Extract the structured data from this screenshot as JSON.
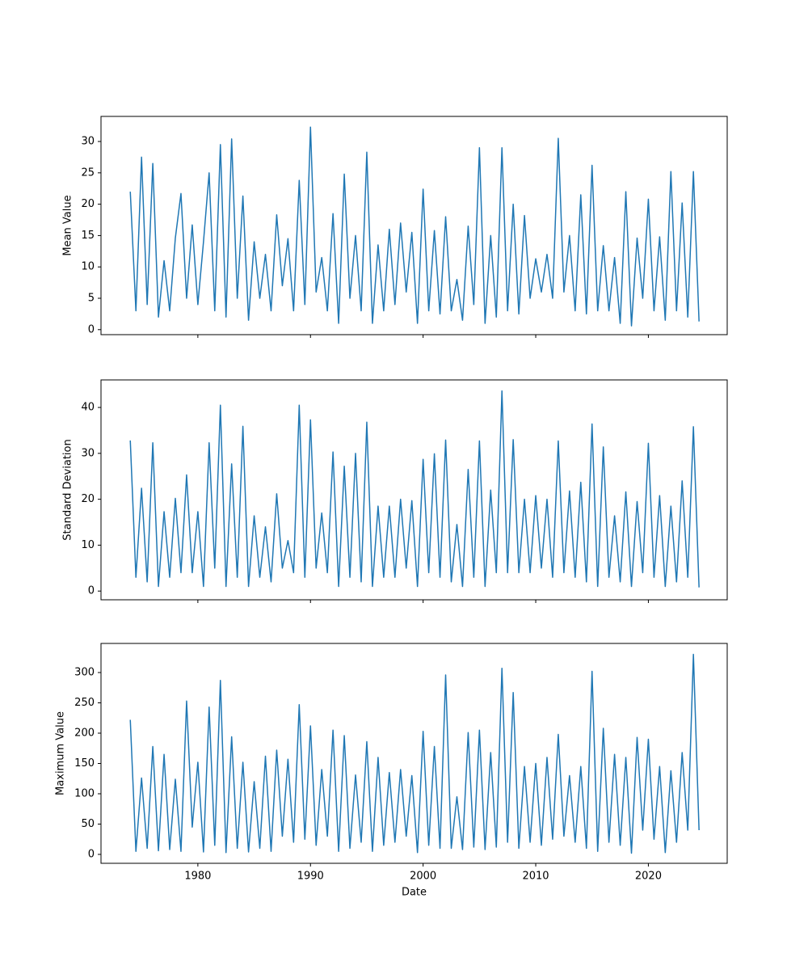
{
  "chart_data": [
    {
      "type": "line",
      "ylabel": "Mean Value",
      "color": "#1f77b4",
      "x": [
        1974,
        1974.5,
        1975,
        1975.5,
        1976,
        1976.5,
        1977,
        1977.5,
        1978,
        1978.5,
        1979,
        1979.5,
        1980,
        1980.5,
        1981,
        1981.5,
        1982,
        1982.5,
        1983,
        1983.5,
        1984,
        1984.5,
        1985,
        1985.5,
        1986,
        1986.5,
        1987,
        1987.5,
        1988,
        1988.5,
        1989,
        1989.5,
        1990,
        1990.5,
        1991,
        1991.5,
        1992,
        1992.5,
        1993,
        1993.5,
        1994,
        1994.5,
        1995,
        1995.5,
        1996,
        1996.5,
        1997,
        1997.5,
        1998,
        1998.5,
        1999,
        1999.5,
        2000,
        2000.5,
        2001,
        2001.5,
        2002,
        2002.5,
        2003,
        2003.5,
        2004,
        2004.5,
        2005,
        2005.5,
        2006,
        2006.5,
        2007,
        2007.5,
        2008,
        2008.5,
        2009,
        2009.5,
        2010,
        2010.5,
        2011,
        2011.5,
        2012,
        2012.5,
        2013,
        2013.5,
        2014,
        2014.5,
        2015,
        2015.5,
        2016,
        2016.5,
        2017,
        2017.5,
        2018,
        2018.5,
        2019,
        2019.5,
        2020,
        2020.5,
        2021,
        2021.5,
        2022,
        2022.5,
        2023,
        2023.5,
        2024,
        2024.5
      ],
      "values": [
        22,
        3,
        27.5,
        4,
        26.5,
        2,
        11,
        3,
        14.6,
        21.7,
        5,
        16.7,
        4,
        14,
        25,
        3,
        29.5,
        2,
        30.4,
        5,
        21.3,
        1.5,
        14,
        5,
        12,
        3,
        18.3,
        7,
        14.5,
        3,
        23.8,
        4,
        32.3,
        6,
        11.5,
        3,
        18.5,
        1,
        24.8,
        5,
        15,
        3,
        28.3,
        1,
        13.5,
        3,
        16,
        4,
        17,
        6,
        15.5,
        1,
        22.4,
        3,
        15.8,
        2.5,
        18,
        3,
        8,
        1.5,
        16.5,
        4,
        29,
        1,
        15,
        2,
        29,
        3,
        20,
        2.5,
        18.2,
        5,
        11.3,
        6,
        12,
        5,
        30.5,
        6,
        15,
        3,
        21.5,
        2.5,
        26.2,
        3,
        13.4,
        3,
        11.5,
        1,
        22,
        0.6,
        14.6,
        5,
        20.8,
        3,
        14.8,
        1.5,
        25.2,
        3,
        20.2,
        2,
        25.2,
        1.3
      ],
      "xlim": [
        1971.4,
        2027.0
      ],
      "xticks": [
        1980,
        1990,
        2000,
        2010,
        2020
      ],
      "ylim": [
        -0.8,
        34.0
      ],
      "yticks": [
        0,
        5,
        10,
        15,
        20,
        25,
        30
      ]
    },
    {
      "type": "line",
      "ylabel": "Standard Deviation",
      "color": "#1f77b4",
      "x": [
        1974,
        1974.5,
        1975,
        1975.5,
        1976,
        1976.5,
        1977,
        1977.5,
        1978,
        1978.5,
        1979,
        1979.5,
        1980,
        1980.5,
        1981,
        1981.5,
        1982,
        1982.5,
        1983,
        1983.5,
        1984,
        1984.5,
        1985,
        1985.5,
        1986,
        1986.5,
        1987,
        1987.5,
        1988,
        1988.5,
        1989,
        1989.5,
        1990,
        1990.5,
        1991,
        1991.5,
        1992,
        1992.5,
        1993,
        1993.5,
        1994,
        1994.5,
        1995,
        1995.5,
        1996,
        1996.5,
        1997,
        1997.5,
        1998,
        1998.5,
        1999,
        1999.5,
        2000,
        2000.5,
        2001,
        2001.5,
        2002,
        2002.5,
        2003,
        2003.5,
        2004,
        2004.5,
        2005,
        2005.5,
        2006,
        2006.5,
        2007,
        2007.5,
        2008,
        2008.5,
        2009,
        2009.5,
        2010,
        2010.5,
        2011,
        2011.5,
        2012,
        2012.5,
        2013,
        2013.5,
        2014,
        2014.5,
        2015,
        2015.5,
        2016,
        2016.5,
        2017,
        2017.5,
        2018,
        2018.5,
        2019,
        2019.5,
        2020,
        2020.5,
        2021,
        2021.5,
        2022,
        2022.5,
        2023,
        2023.5,
        2024,
        2024.5
      ],
      "values": [
        32.8,
        3,
        22.4,
        2,
        32.3,
        1,
        17.3,
        3,
        20.2,
        4,
        25.3,
        4,
        17.3,
        1,
        32.3,
        5,
        40.5,
        1,
        27.7,
        3,
        35.9,
        1,
        16.4,
        3,
        14,
        2,
        21.2,
        5,
        11,
        4,
        40.5,
        3,
        37.3,
        5,
        17,
        4,
        30.3,
        1,
        27.2,
        3,
        30,
        2,
        36.8,
        1,
        18.5,
        3,
        18.5,
        3,
        20,
        5,
        19.7,
        1,
        28.7,
        4,
        29.9,
        3,
        32.9,
        2,
        14.5,
        1,
        26.5,
        3,
        32.7,
        1,
        22,
        4,
        43.6,
        4,
        33,
        4,
        20,
        4,
        20.8,
        5,
        20,
        3,
        32.7,
        4,
        21.8,
        3,
        23.7,
        2,
        36.4,
        1,
        31.4,
        3,
        16.4,
        2,
        21.6,
        1,
        19.5,
        4,
        32.2,
        3,
        20.8,
        1,
        18.5,
        2,
        24,
        3,
        35.8,
        0.8
      ],
      "xlim": [
        1971.4,
        2027.0
      ],
      "xticks": [
        1980,
        1990,
        2000,
        2010,
        2020
      ],
      "ylim": [
        -1.9,
        46.0
      ],
      "yticks": [
        0,
        10,
        20,
        30,
        40
      ]
    },
    {
      "type": "line",
      "ylabel": "Maximum Value",
      "xlabel": "Date",
      "color": "#1f77b4",
      "x": [
        1974,
        1974.5,
        1975,
        1975.5,
        1976,
        1976.5,
        1977,
        1977.5,
        1978,
        1978.5,
        1979,
        1979.5,
        1980,
        1980.5,
        1981,
        1981.5,
        1982,
        1982.5,
        1983,
        1983.5,
        1984,
        1984.5,
        1985,
        1985.5,
        1986,
        1986.5,
        1987,
        1987.5,
        1988,
        1988.5,
        1989,
        1989.5,
        1990,
        1990.5,
        1991,
        1991.5,
        1992,
        1992.5,
        1993,
        1993.5,
        1994,
        1994.5,
        1995,
        1995.5,
        1996,
        1996.5,
        1997,
        1997.5,
        1998,
        1998.5,
        1999,
        1999.5,
        2000,
        2000.5,
        2001,
        2001.5,
        2002,
        2002.5,
        2003,
        2003.5,
        2004,
        2004.5,
        2005,
        2005.5,
        2006,
        2006.5,
        2007,
        2007.5,
        2008,
        2008.5,
        2009,
        2009.5,
        2010,
        2010.5,
        2011,
        2011.5,
        2012,
        2012.5,
        2013,
        2013.5,
        2014,
        2014.5,
        2015,
        2015.5,
        2016,
        2016.5,
        2017,
        2017.5,
        2018,
        2018.5,
        2019,
        2019.5,
        2020,
        2020.5,
        2021,
        2021.5,
        2022,
        2022.5,
        2023,
        2023.5,
        2024,
        2024.5
      ],
      "values": [
        222,
        5,
        126,
        10,
        178,
        6,
        165,
        8,
        124,
        5,
        253,
        45,
        152,
        4,
        243,
        15,
        287,
        3,
        194,
        10,
        152,
        4,
        120,
        10,
        162,
        5,
        172,
        30,
        157,
        20,
        247,
        25,
        212,
        15,
        140,
        30,
        205,
        5,
        196,
        10,
        131,
        20,
        186,
        5,
        160,
        15,
        135,
        20,
        140,
        30,
        130,
        3,
        203,
        15,
        178,
        10,
        296,
        10,
        95,
        8,
        201,
        12,
        205,
        8,
        168,
        12,
        307,
        20,
        267,
        10,
        145,
        20,
        150,
        15,
        160,
        25,
        198,
        30,
        130,
        20,
        145,
        10,
        302,
        5,
        208,
        20,
        165,
        15,
        160,
        2,
        193,
        40,
        190,
        25,
        145,
        3,
        138,
        20,
        168,
        40,
        330,
        40
      ],
      "xlim": [
        1971.4,
        2027.0
      ],
      "xticks": [
        1980,
        1990,
        2000,
        2010,
        2020
      ],
      "ylim": [
        -14.7,
        348
      ],
      "yticks": [
        0,
        50,
        100,
        150,
        200,
        250,
        300
      ]
    }
  ]
}
